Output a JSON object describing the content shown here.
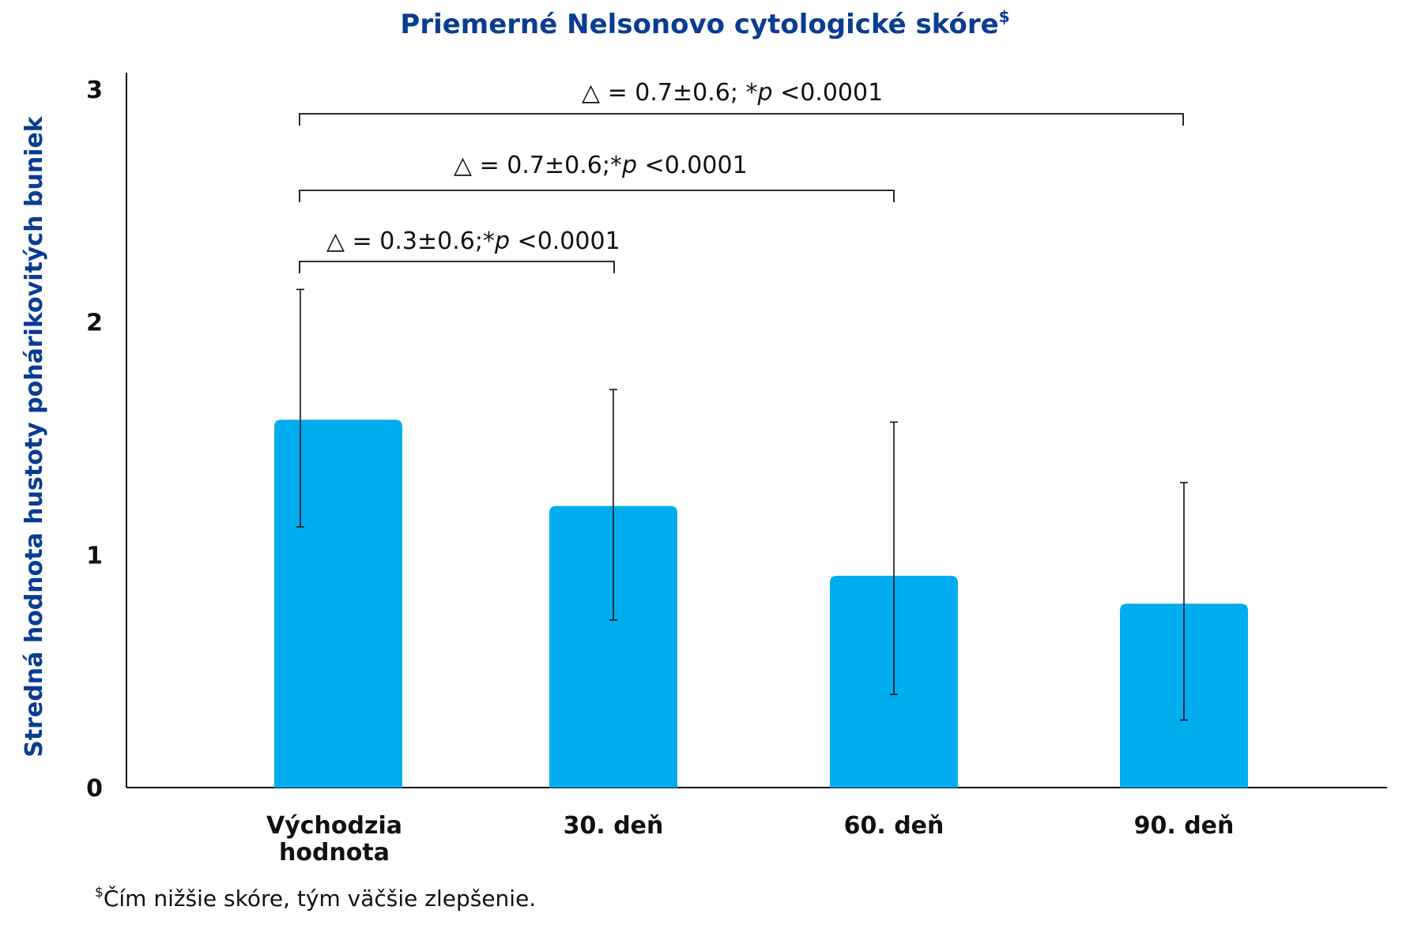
{
  "chart_data": {
    "type": "bar",
    "title": "Priemerné Nelsonovo cytologické skóre",
    "title_superscript": "$",
    "ylabel": "Stredná hodnota hustoty pohárikovitých buniek",
    "xlabel": "",
    "ylim": [
      0,
      3
    ],
    "yticks": [
      "0",
      "1",
      "2",
      "3"
    ],
    "categories": [
      [
        "Východzia",
        "hodnota"
      ],
      [
        "30. deň"
      ],
      [
        "60. deň"
      ],
      [
        "90. deň"
      ]
    ],
    "series": [
      {
        "values": [
          1.58,
          1.21,
          0.91,
          0.79
        ],
        "error_low": [
          1.12,
          0.72,
          0.4,
          0.29
        ],
        "error_high": [
          2.14,
          1.71,
          1.57,
          1.31
        ]
      }
    ],
    "bar_color": "#00adef",
    "comparisons": [
      {
        "from": 0,
        "to": 1,
        "delta_symbol": "△",
        "equals": "=",
        "value": "0.3±0.6;*",
        "p_italic": "p",
        "p_text": " <0.0001"
      },
      {
        "from": 0,
        "to": 2,
        "delta_symbol": "△",
        "equals": "=",
        "value": "0.7±0.6;*",
        "p_italic": "p",
        "p_text": " <0.0001"
      },
      {
        "from": 0,
        "to": 3,
        "delta_symbol": "△",
        "equals": "=",
        "value": "0.7±0.6; *",
        "p_italic": "p",
        "p_text": " <0.0001"
      }
    ],
    "footnote_superscript": "$",
    "footnote": "Čím nižšie skóre, tým väčšie zlepšenie.",
    "grid": false,
    "legend": "none"
  }
}
